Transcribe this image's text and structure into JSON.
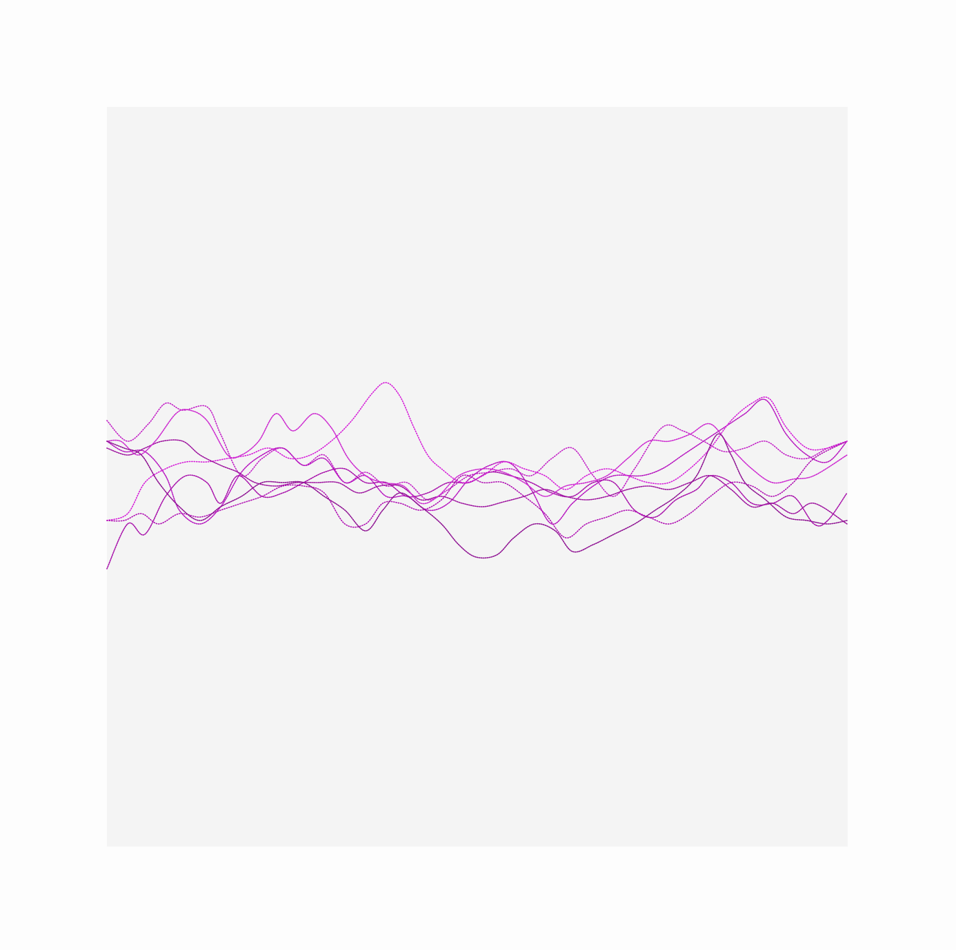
{
  "artwork": {
    "colors": {
      "page_background": "#fdfdfd",
      "canvas_background": "#f4f4f4",
      "line_colors": [
        "#c21fc6",
        "#b717c0",
        "#a812ab",
        "#d51cd8",
        "#9e159f",
        "#cd2ad0",
        "#b010b3",
        "#8f1393"
      ]
    },
    "line_count": 8,
    "stroke_style": "dotted"
  }
}
